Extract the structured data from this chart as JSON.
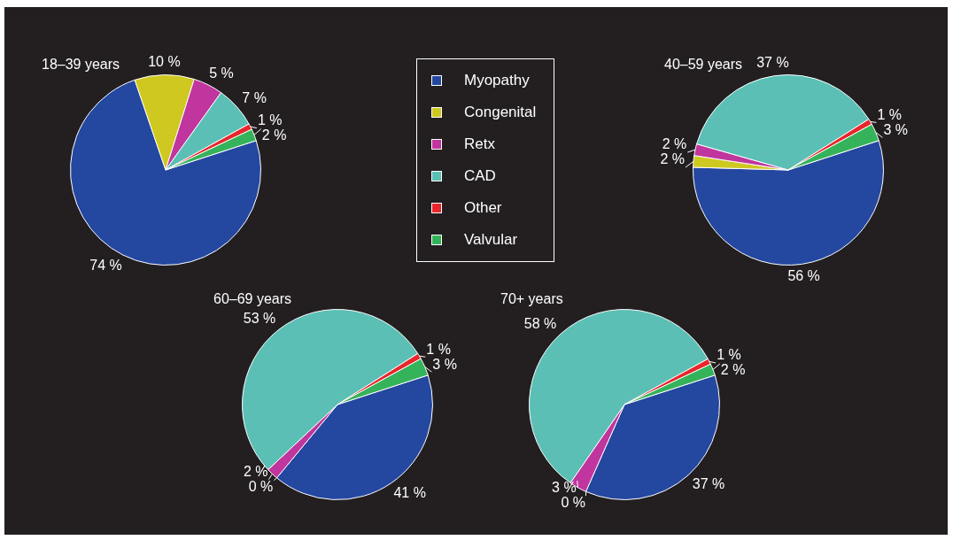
{
  "chart_data": [
    {
      "type": "pie",
      "title": "18–39 years",
      "categories": [
        "Myopathy",
        "Congenital",
        "Retx",
        "CAD",
        "Other",
        "Valvular"
      ],
      "values": [
        74,
        10,
        5,
        7,
        1,
        2
      ],
      "value_labels": [
        "74 %",
        "10 %",
        "5 %",
        "7 %",
        "1 %",
        "2 %"
      ],
      "colors": [
        "#2447a0",
        "#cfc820",
        "#c0359e",
        "#5bbfb5",
        "#e8262b",
        "#35b35a"
      ],
      "legend": "right"
    },
    {
      "type": "pie",
      "title": "40–59 years",
      "categories": [
        null,
        null,
        null,
        null,
        null,
        null
      ],
      "values": [
        56,
        2,
        2,
        37,
        1,
        3
      ],
      "value_labels": [
        "56 %",
        "2 %",
        "2 %",
        "37 %",
        "1 %",
        "3 %"
      ],
      "colors": [
        "#2447a0",
        "#cfc820",
        "#c0359e",
        "#5bbfb5",
        "#e8262b",
        "#35b35a"
      ]
    },
    {
      "type": "pie",
      "title": "60–69 years",
      "categories": [
        null,
        null,
        null,
        null,
        null,
        null
      ],
      "values": [
        41,
        0,
        2,
        53,
        1,
        3
      ],
      "value_labels": [
        "41 %",
        "0 %",
        "2 %",
        "53 %",
        "1 %",
        "3 %"
      ],
      "colors": [
        "#2447a0",
        "#cfc820",
        "#c0359e",
        "#5bbfb5",
        "#e8262b",
        "#35b35a"
      ]
    },
    {
      "type": "pie",
      "title": "70+ years",
      "categories": [
        null,
        null,
        null,
        null,
        null,
        null
      ],
      "values": [
        37,
        0,
        3,
        58,
        1,
        2
      ],
      "value_labels": [
        "37 %",
        "0 %",
        "3 %",
        "58 %",
        "1 %",
        "2 %"
      ],
      "colors": [
        "#2447a0",
        "#cfc820",
        "#c0359e",
        "#5bbfb5",
        "#e8262b",
        "#35b35a"
      ]
    }
  ]
}
